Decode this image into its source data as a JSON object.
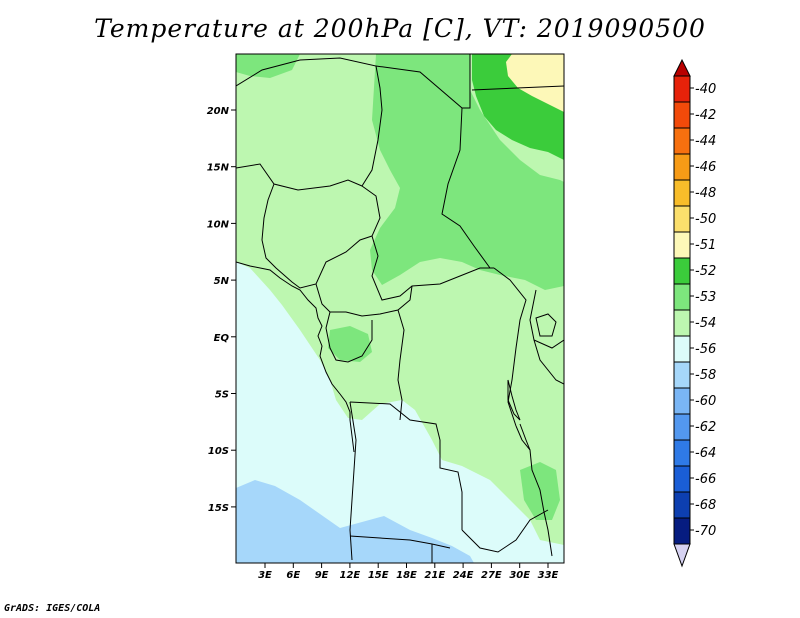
{
  "title": "Temperature at 200hPa [C], VT: 2019090500",
  "footer": "GrADS: IGES/COLA",
  "map": {
    "lat_labels": [
      "20N",
      "15N",
      "10N",
      "5N",
      "EQ",
      "5S",
      "10S",
      "15S"
    ],
    "lon_labels": [
      "3E",
      "6E",
      "9E",
      "12E",
      "15E",
      "18E",
      "21E",
      "24E",
      "27E",
      "30E",
      "33E"
    ]
  },
  "colorbar": {
    "labels": [
      "-40",
      "-42",
      "-44",
      "-46",
      "-48",
      "-50",
      "-51",
      "-52",
      "-53",
      "-54",
      "-56",
      "-58",
      "-60",
      "-62",
      "-64",
      "-66",
      "-68",
      "-70"
    ],
    "colors": [
      "#e6220a",
      "#f24a0a",
      "#f7700f",
      "#f79b16",
      "#f8bd2a",
      "#fbdf6c",
      "#fdf8b8",
      "#3bcc3b",
      "#7de67d",
      "#bdf7b0",
      "#dcfcfa",
      "#a6d7fa",
      "#7ab6f5",
      "#5398ef",
      "#2f7ae6",
      "#1a5ed6",
      "#0d3fb0",
      "#061c80"
    ],
    "top_arrow_color": "#b80000",
    "bottom_arrow_color": "#d6d2f2"
  },
  "field_colors": {
    "ocean": "#dcfcfa",
    "band_53_54": "#bdf7b0",
    "band_52_53": "#7de67d",
    "band_51_52": "#3bcc3b",
    "band_50_51": "#fdf8b8",
    "band_56_58": "#a6d7fa"
  }
}
